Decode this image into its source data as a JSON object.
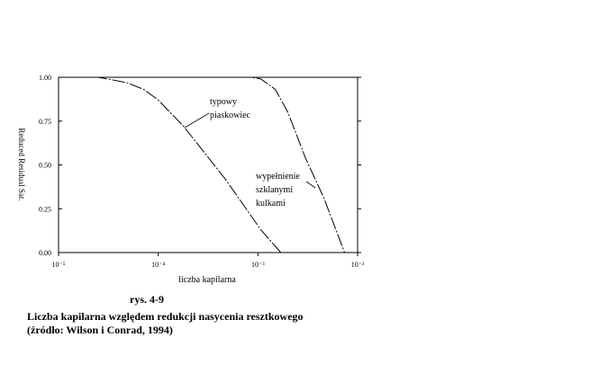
{
  "chart_data": {
    "type": "line",
    "y_label": "Reduced Residual Sat.",
    "x_label": "liczba kapilarna",
    "x_log": true,
    "xlim": [
      1e-05,
      0.01
    ],
    "xticks": [
      {
        "value": 1e-05,
        "label": "10⁻⁵"
      },
      {
        "value": 0.0001,
        "label": "10⁻⁴"
      },
      {
        "value": 0.001,
        "label": "10⁻³"
      },
      {
        "value": 0.01,
        "label": "10⁻²"
      }
    ],
    "ylim": [
      0,
      1
    ],
    "yticks": [
      {
        "value": 0,
        "label": "0.00"
      },
      {
        "value": 0.25,
        "label": "0.25"
      },
      {
        "value": 0.5,
        "label": "0.50"
      },
      {
        "value": 0.75,
        "label": "0.75"
      },
      {
        "value": 1,
        "label": "1.00"
      }
    ],
    "series": [
      {
        "color": "#000000",
        "x": [
          1e-05,
          2.5e-05,
          4.8e-05,
          7.2e-05,
          0.0001,
          0.00018,
          0.00047,
          0.00107,
          0.0017
        ],
        "values": [
          1,
          1,
          0.97,
          0.93,
          0.87,
          0.72,
          0.42,
          0.13,
          0
        ]
      },
      {
        "color": "#000000",
        "x": [
          1e-05,
          0.00087,
          0.00107,
          0.0015,
          0.002,
          0.003,
          0.0046,
          0.0074
        ],
        "values": [
          1,
          1,
          0.99,
          0.93,
          0.8,
          0.54,
          0.31,
          0
        ]
      }
    ],
    "annotations": [
      {
        "lines": [
          "typowy",
          "piaskowiec"
        ]
      },
      {
        "lines": [
          "wypełnienie",
          "szklanymi",
          "kulkami"
        ]
      }
    ],
    "caption": [
      "rys. 4-9",
      "Liczba kapilarna względem redukcji nasycenia resztkowego",
      "(źródło: Wilson i Conrad, 1994)"
    ]
  }
}
